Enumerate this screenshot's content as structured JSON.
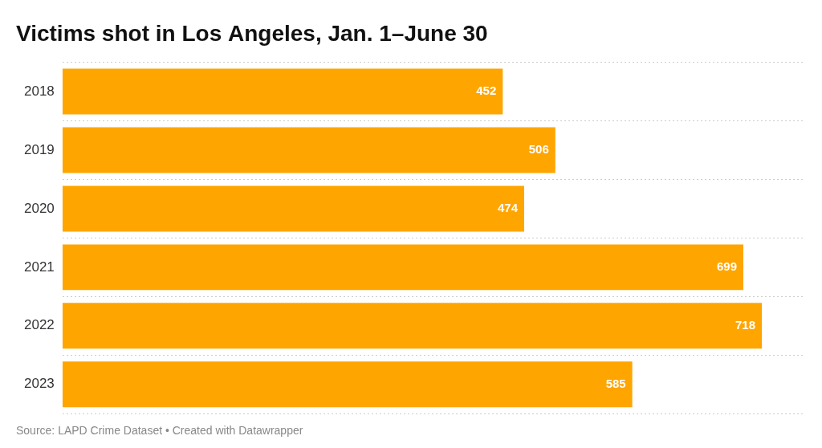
{
  "chart_data": {
    "type": "bar",
    "orientation": "horizontal",
    "title": "Victims shot in Los Angeles, Jan. 1–June 30",
    "categories": [
      "2018",
      "2019",
      "2020",
      "2021",
      "2022",
      "2023"
    ],
    "values": [
      452,
      506,
      474,
      699,
      718,
      585
    ],
    "color": "#FFA500",
    "xlim": [
      0,
      760
    ],
    "data_labels": true,
    "tick_labels": "y",
    "grid": true,
    "annotations": [
      "Source: LAPD Crime Dataset • Created with Datawrapper"
    ]
  }
}
